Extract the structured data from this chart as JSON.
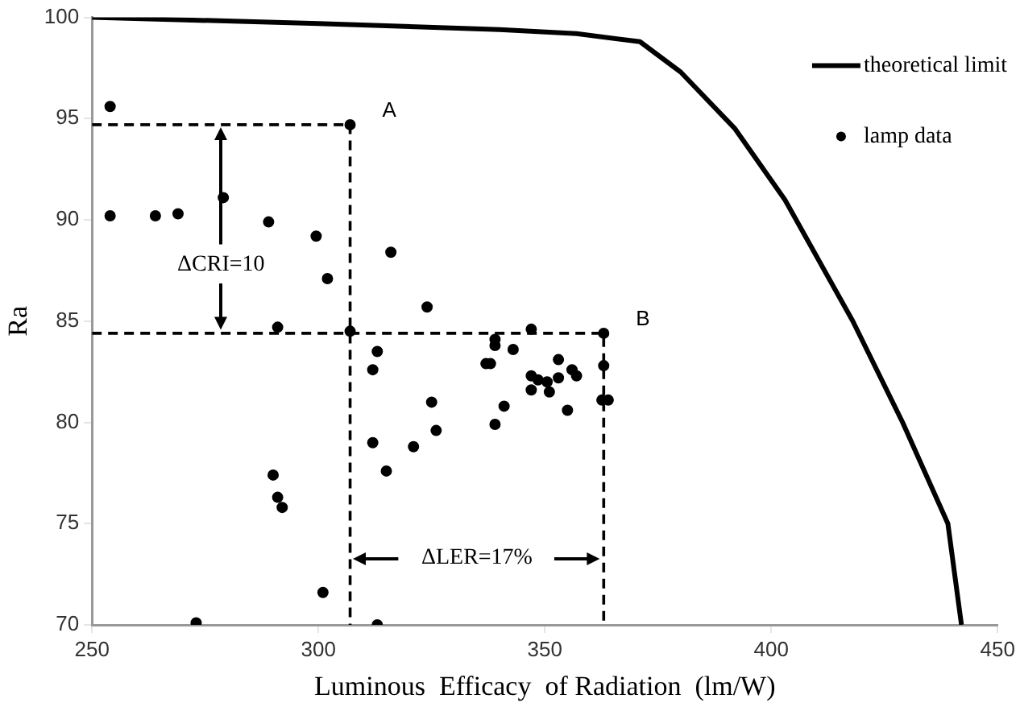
{
  "chart_data": {
    "type": "scatter",
    "xlabel": "Luminous  Efficacy  of Radiation  (lm/W)",
    "ylabel": "Ra",
    "xlim": [
      250,
      450
    ],
    "xticks": [
      250,
      300,
      350,
      400,
      450
    ],
    "ylim": [
      70,
      100
    ],
    "yticks": [
      70,
      75,
      80,
      85,
      90,
      95,
      100
    ],
    "grid": false,
    "legend": "top right",
    "marker": "circle",
    "series": [
      {
        "name": "theoretical limit",
        "type": "line",
        "marker": "none",
        "color": "#000000",
        "x": [
          250,
          300,
          340,
          357,
          371,
          380,
          392,
          403,
          418,
          429,
          439,
          442
        ],
        "values": [
          100,
          99.7,
          99.4,
          99.2,
          98.8,
          97.3,
          94.5,
          91,
          85,
          80,
          75,
          70
        ]
      },
      {
        "name": "lamp data",
        "color": "#000000",
        "x": [
          254,
          307,
          254,
          264,
          269,
          279,
          289,
          299.5,
          302,
          316,
          324,
          291,
          307,
          313,
          312,
          337,
          338,
          339,
          339,
          343,
          347,
          363,
          353,
          347,
          348.5,
          350.5,
          353,
          356,
          357,
          347,
          351,
          363,
          362.6,
          364,
          355,
          341,
          325,
          326,
          339,
          312,
          321,
          315,
          290,
          291,
          292,
          301,
          273,
          313
        ],
        "values": [
          95.6,
          94.7,
          90.2,
          90.2,
          90.3,
          91.1,
          89.9,
          89.2,
          87.1,
          88.4,
          85.7,
          84.7,
          84.5,
          83.5,
          82.6,
          82.9,
          82.9,
          84.1,
          83.8,
          83.6,
          84.6,
          84.4,
          83.1,
          82.3,
          82.1,
          82,
          82.2,
          82.6,
          82.3,
          81.6,
          81.5,
          82.8,
          81.1,
          81.1,
          80.6,
          80.8,
          81,
          79.6,
          79.9,
          79,
          78.8,
          77.6,
          77.4,
          76.3,
          75.8,
          71.6,
          70.1,
          70
        ]
      },
      {
        "type": "line",
        "marker": "none",
        "line_style": "dashed",
        "color": "#000000",
        "x": [
          250,
          307,
          307
        ],
        "values": [
          94.7,
          94.7,
          70
        ]
      },
      {
        "type": "line",
        "marker": "none",
        "line_style": "dashed",
        "color": "#000000",
        "x": [
          250,
          363,
          363
        ],
        "values": [
          84.4,
          84.4,
          70
        ]
      }
    ],
    "annotations": [
      {
        "text": "A",
        "x": 307,
        "y": 94.7
      },
      {
        "text": "B",
        "x": 363,
        "y": 84.4
      },
      "ΔCRI=10",
      "ΔLER=17%"
    ]
  }
}
